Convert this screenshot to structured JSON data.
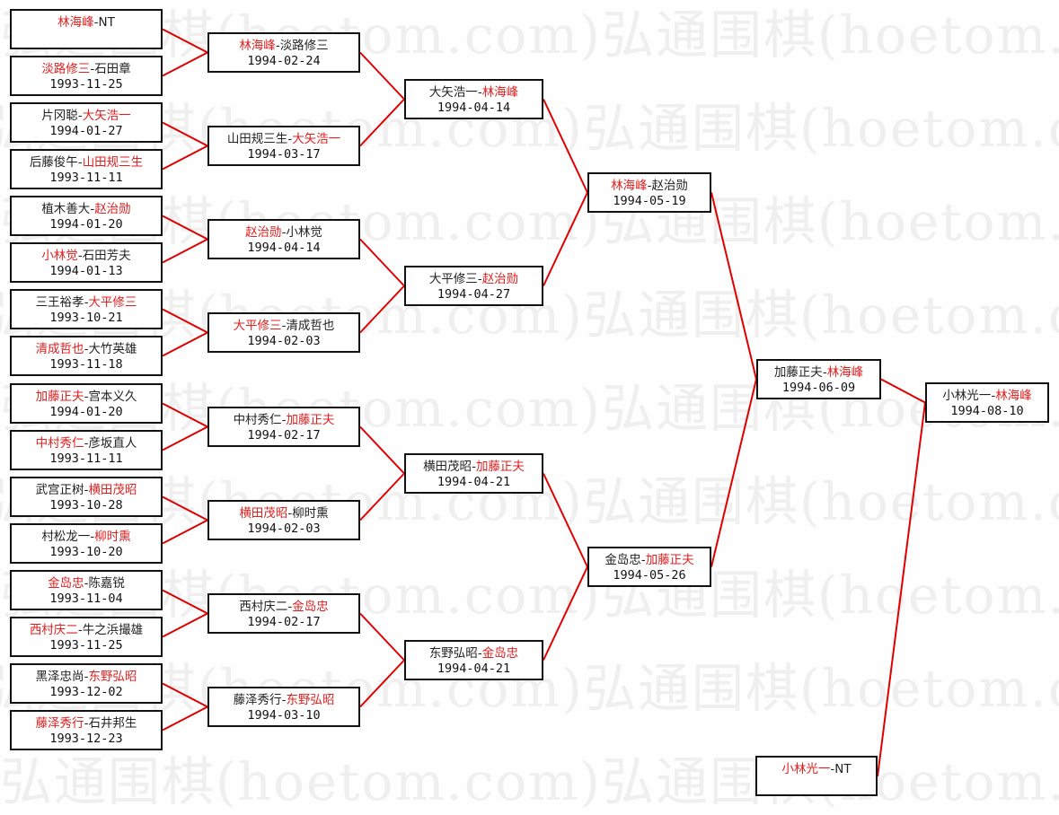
{
  "watermark": "弘通围棋(hoetom.com)",
  "colors": {
    "winner": "#e02020",
    "line": "#e00000",
    "border": "#111111"
  },
  "separator": "-",
  "rounds": [
    [
      {
        "p1": "林海峰",
        "p2": "NT",
        "winner": 1,
        "date": ""
      },
      {
        "p1": "淡路修三",
        "p2": "石田章",
        "winner": 1,
        "date": "1993-11-25"
      },
      {
        "p1": "片冈聪",
        "p2": "大矢浩一",
        "winner": 2,
        "date": "1994-01-27"
      },
      {
        "p1": "后藤俊午",
        "p2": "山田规三生",
        "winner": 2,
        "date": "1993-11-11"
      },
      {
        "p1": "植木善大",
        "p2": "赵治勋",
        "winner": 2,
        "date": "1994-01-20"
      },
      {
        "p1": "小林觉",
        "p2": "石田芳夫",
        "winner": 1,
        "date": "1994-01-13"
      },
      {
        "p1": "三王裕孝",
        "p2": "大平修三",
        "winner": 2,
        "date": "1993-10-21"
      },
      {
        "p1": "清成哲也",
        "p2": "大竹英雄",
        "winner": 1,
        "date": "1993-11-18"
      },
      {
        "p1": "加藤正夫",
        "p2": "宫本义久",
        "winner": 1,
        "date": "1994-01-20"
      },
      {
        "p1": "中村秀仁",
        "p2": "彦坂直人",
        "winner": 1,
        "date": "1993-11-11"
      },
      {
        "p1": "武宫正树",
        "p2": "横田茂昭",
        "winner": 2,
        "date": "1993-10-28"
      },
      {
        "p1": "村松龙一",
        "p2": "柳时熏",
        "winner": 2,
        "date": "1993-10-20"
      },
      {
        "p1": "金岛忠",
        "p2": "陈嘉锐",
        "winner": 1,
        "date": "1993-11-04"
      },
      {
        "p1": "西村庆二",
        "p2": "牛之浜撮雄",
        "winner": 1,
        "date": "1993-11-25"
      },
      {
        "p1": "黑泽忠尚",
        "p2": "东野弘昭",
        "winner": 2,
        "date": "1993-12-02"
      },
      {
        "p1": "藤泽秀行",
        "p2": "石井邦生",
        "winner": 1,
        "date": "1993-12-23"
      }
    ],
    [
      {
        "p1": "林海峰",
        "p2": "淡路修三",
        "winner": 1,
        "date": "1994-02-24"
      },
      {
        "p1": "山田规三生",
        "p2": "大矢浩一",
        "winner": 2,
        "date": "1994-03-17"
      },
      {
        "p1": "赵治勋",
        "p2": "小林觉",
        "winner": 1,
        "date": "1994-04-14"
      },
      {
        "p1": "大平修三",
        "p2": "清成哲也",
        "winner": 1,
        "date": "1994-02-03"
      },
      {
        "p1": "中村秀仁",
        "p2": "加藤正夫",
        "winner": 2,
        "date": "1994-02-17"
      },
      {
        "p1": "横田茂昭",
        "p2": "柳时熏",
        "winner": 1,
        "date": "1994-02-03"
      },
      {
        "p1": "西村庆二",
        "p2": "金岛忠",
        "winner": 2,
        "date": "1994-02-17"
      },
      {
        "p1": "藤泽秀行",
        "p2": "东野弘昭",
        "winner": 2,
        "date": "1994-03-10"
      }
    ],
    [
      {
        "p1": "大矢浩一",
        "p2": "林海峰",
        "winner": 2,
        "date": "1994-04-14"
      },
      {
        "p1": "大平修三",
        "p2": "赵治勋",
        "winner": 2,
        "date": "1994-04-27"
      },
      {
        "p1": "横田茂昭",
        "p2": "加藤正夫",
        "winner": 2,
        "date": "1994-04-21"
      },
      {
        "p1": "东野弘昭",
        "p2": "金岛忠",
        "winner": 2,
        "date": "1994-04-21"
      }
    ],
    [
      {
        "p1": "林海峰",
        "p2": "赵治勋",
        "winner": 1,
        "date": "1994-05-19"
      },
      {
        "p1": "金岛忠",
        "p2": "加藤正夫",
        "winner": 2,
        "date": "1994-05-26"
      }
    ],
    [
      {
        "p1": "加藤正夫",
        "p2": "林海峰",
        "winner": 2,
        "date": "1994-06-09"
      }
    ],
    [
      {
        "p1": "小林光一",
        "p2": "林海峰",
        "winner": 2,
        "date": "1994-08-10"
      }
    ]
  ],
  "seed": {
    "p1": "小林光一",
    "p2": "NT",
    "winner": 1,
    "date": ""
  }
}
